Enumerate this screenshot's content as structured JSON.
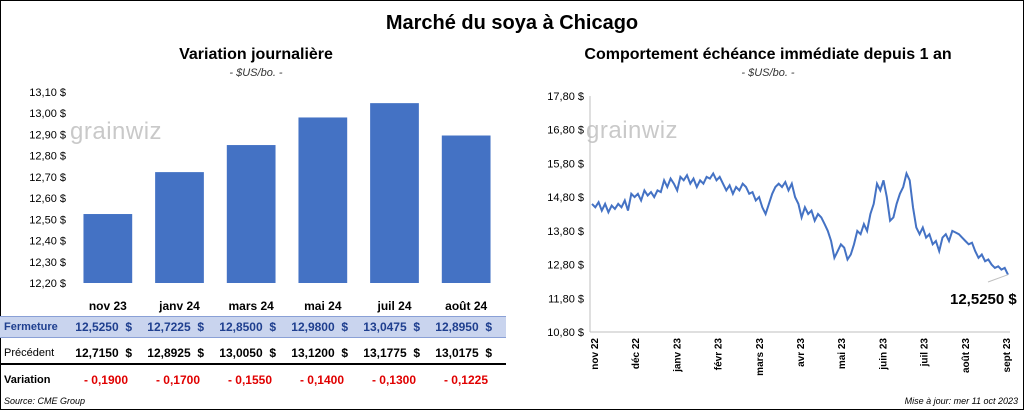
{
  "title": "Marché du soya à Chicago",
  "left": {
    "title": "Variation journalière",
    "unit": "- $US/bo. -",
    "watermark": "grainwiz"
  },
  "right": {
    "title": "Comportement échéance immédiate depuis 1 an",
    "unit": "- $US/bo. -",
    "watermark": "grainwiz",
    "last_value_label": "12,5250 $"
  },
  "table": {
    "rows": [
      {
        "label": "Fermeture",
        "cells": [
          "12,5250  $",
          "12,7225  $",
          "12,8500  $",
          "12,9800  $",
          "13,0475  $",
          "12,8950  $"
        ]
      },
      {
        "label": "Précédent",
        "cells": [
          "12,7150  $",
          "12,8925  $",
          "13,0050  $",
          "13,1200  $",
          "13,1775  $",
          "13,0175  $"
        ]
      },
      {
        "label": "Variation",
        "cells": [
          "- 0,1900",
          "- 0,1700",
          "- 0,1550",
          "- 0,1400",
          "- 0,1300",
          "- 0,1225"
        ]
      }
    ]
  },
  "source": "Source: CME Group",
  "updated": "Mise à jour: mer 11 oct 2023",
  "colors": {
    "bar": "#4472c4",
    "line": "#4472c4",
    "negative": "#e00000",
    "ferm_bg": "#c9d4ee"
  },
  "chart_data": [
    {
      "type": "bar",
      "title": "Variation journalière",
      "categories": [
        "nov 23",
        "janv 24",
        "mars 24",
        "mai 24",
        "juil 24",
        "août 24"
      ],
      "values": [
        12.525,
        12.7225,
        12.85,
        12.98,
        13.0475,
        12.895
      ],
      "ylim": [
        12.2,
        13.1
      ],
      "yticks": [
        "12,20 $",
        "12,30 $",
        "12,40 $",
        "12,50 $",
        "12,60 $",
        "12,70 $",
        "12,80 $",
        "12,90 $",
        "13,00 $",
        "13,10 $"
      ],
      "grid": false,
      "legend": "none"
    },
    {
      "type": "line",
      "title": "Comportement échéance immédiate depuis 1 an",
      "ylim": [
        10.8,
        17.8
      ],
      "yticks": [
        "10,80 $",
        "11,80 $",
        "12,80 $",
        "13,80 $",
        "14,80 $",
        "15,80 $",
        "16,80 $",
        "17,80 $"
      ],
      "xticks": [
        "nov 22",
        "déc 22",
        "janv 23",
        "févr 23",
        "mars 23",
        "avr 23",
        "mai 23",
        "juin 23",
        "juil 23",
        "août 23",
        "sept 23"
      ],
      "series": [
        {
          "values": [
            14.6,
            14.5,
            14.65,
            14.4,
            14.6,
            14.35,
            14.55,
            14.45,
            14.6,
            14.5,
            14.7,
            14.4,
            14.9,
            14.8,
            14.9,
            14.7,
            15.0,
            14.85,
            14.95,
            14.8,
            15.0,
            14.95,
            15.3,
            15.1,
            15.35,
            15.2,
            15.0,
            15.4,
            15.3,
            15.45,
            15.2,
            15.35,
            15.1,
            15.3,
            15.2,
            15.4,
            15.35,
            15.5,
            15.3,
            15.4,
            15.2,
            15.0,
            15.15,
            14.9,
            15.1,
            15.0,
            15.2,
            15.1,
            14.9,
            14.95,
            14.7,
            14.8,
            14.5,
            14.3,
            14.6,
            14.9,
            15.1,
            15.2,
            15.1,
            15.25,
            15.0,
            15.2,
            14.8,
            14.6,
            14.2,
            14.5,
            14.3,
            14.4,
            14.1,
            14.3,
            14.2,
            14.0,
            13.8,
            13.5,
            13.0,
            13.2,
            13.4,
            13.3,
            12.95,
            13.1,
            13.4,
            13.8,
            13.7,
            14.0,
            13.8,
            14.3,
            14.6,
            15.2,
            15.0,
            15.3,
            14.8,
            14.1,
            14.2,
            14.6,
            14.9,
            15.1,
            15.5,
            15.3,
            14.5,
            13.9,
            13.7,
            13.9,
            13.6,
            13.7,
            13.4,
            13.5,
            13.2,
            13.6,
            13.7,
            13.5,
            13.8,
            13.75,
            13.7,
            13.6,
            13.5,
            13.4,
            13.45,
            13.2,
            13.0,
            13.1,
            12.9,
            12.95,
            12.8,
            12.7,
            12.75,
            12.65,
            12.7,
            12.5
          ]
        }
      ],
      "annotation": "12,5250 $",
      "grid": false,
      "legend": "none"
    }
  ]
}
